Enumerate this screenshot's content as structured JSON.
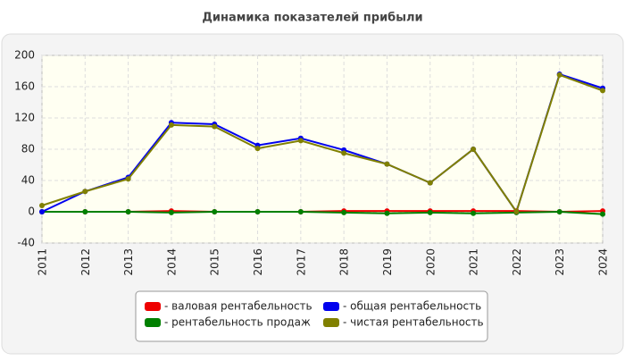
{
  "chart_data": {
    "type": "line",
    "title": "Динамика показателей прибыли",
    "categories": [
      "2011",
      "2012",
      "2013",
      "2014",
      "2015",
      "2016",
      "2017",
      "2018",
      "2019",
      "2020",
      "2021",
      "2022",
      "2023",
      "2024"
    ],
    "series": [
      {
        "name": "- валовая рентабельность",
        "color": "#ee0000",
        "values": [
          0,
          0,
          0,
          1,
          0,
          0,
          0,
          1,
          1,
          1,
          1,
          1,
          0,
          1
        ]
      },
      {
        "name": "- рентабельность продаж",
        "color": "#008000",
        "values": [
          0,
          0,
          0,
          -1,
          0,
          0,
          0,
          -1,
          -2,
          -1,
          -2,
          -1,
          0,
          -3
        ]
      },
      {
        "name": "- общая рентабельность",
        "color": "#0000ee",
        "values": [
          0,
          26,
          44,
          114,
          112,
          85,
          94,
          79,
          61,
          37,
          80,
          0,
          176,
          158
        ]
      },
      {
        "name": "- чистая рентабельность",
        "color": "#808000",
        "values": [
          8,
          26,
          42,
          111,
          109,
          81,
          91,
          75,
          61,
          37,
          80,
          0,
          175,
          155
        ]
      }
    ],
    "ylim": [
      -40,
      200
    ],
    "yticks": [
      -40,
      0,
      40,
      80,
      120,
      160,
      200
    ],
    "grid": true
  }
}
